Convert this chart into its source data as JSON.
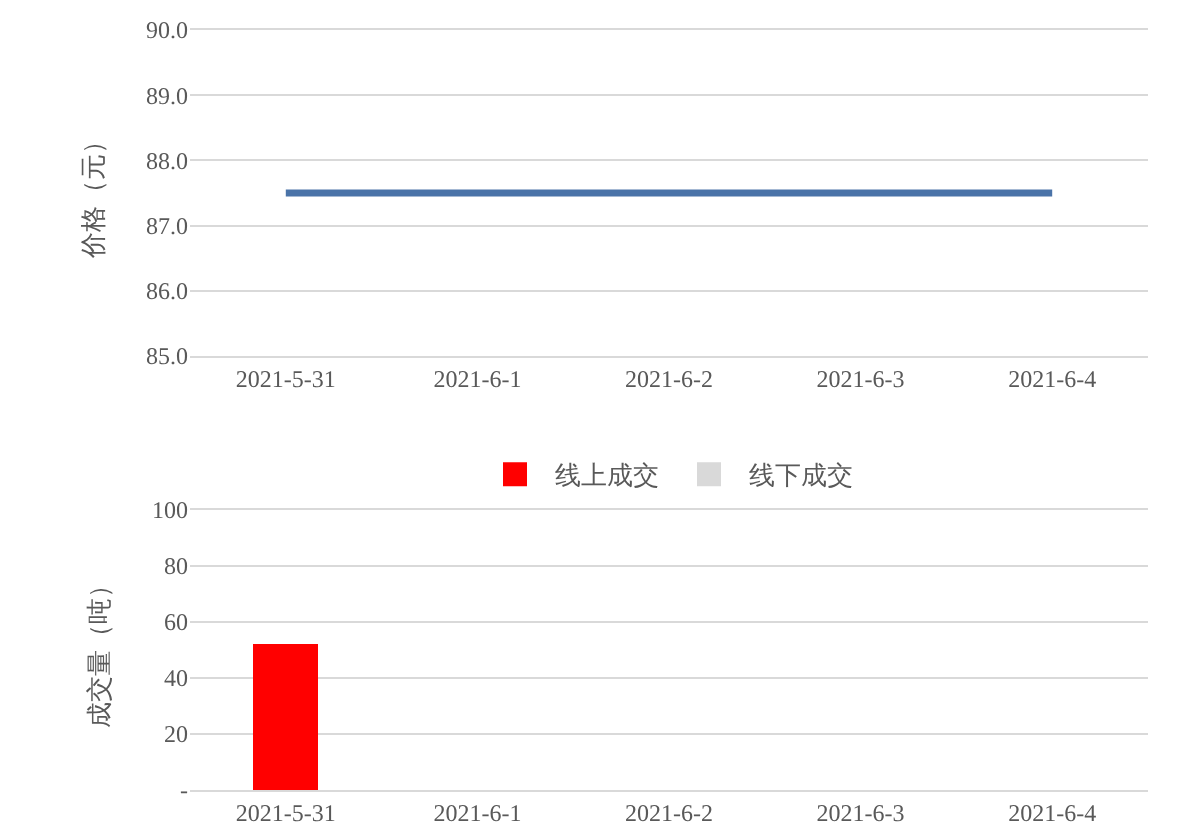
{
  "chart_data": [
    {
      "type": "line",
      "categories": [
        "2021-5-31",
        "2021-6-1",
        "2021-6-2",
        "2021-6-3",
        "2021-6-4"
      ],
      "ylabel": "价格（元）",
      "series": [
        {
          "color": "#4a73a8",
          "values": [
            87.5,
            87.5,
            87.5,
            87.5,
            87.5
          ]
        }
      ],
      "ylim": [
        85,
        90
      ],
      "yticks": [
        {
          "value": 85,
          "label": "85.0"
        },
        {
          "value": 86,
          "label": "86.0"
        },
        {
          "value": 87,
          "label": "87.0"
        },
        {
          "value": 88,
          "label": "88.0"
        },
        {
          "value": 89,
          "label": "89.0"
        },
        {
          "value": 90,
          "label": "90.0"
        }
      ],
      "grid": "y",
      "legend": false,
      "marker": "none",
      "line_style": "solid"
    },
    {
      "type": "bar",
      "categories": [
        "2021-5-31",
        "2021-6-1",
        "2021-6-2",
        "2021-6-3",
        "2021-6-4"
      ],
      "ylabel": "成交量（吨）",
      "series": [
        {
          "name": "线上成交",
          "color": "#ff0000",
          "values": [
            52,
            null,
            null,
            null,
            null
          ]
        },
        {
          "name": "线下成交",
          "color": "#d9d9d9",
          "values": [
            null,
            null,
            null,
            null,
            null
          ]
        }
      ],
      "stacked": true,
      "ylim": [
        0,
        100
      ],
      "yticks": [
        {
          "value": 0,
          "label": "-"
        },
        20,
        40,
        60,
        80,
        100
      ],
      "grid": "y",
      "legend": "top"
    }
  ]
}
